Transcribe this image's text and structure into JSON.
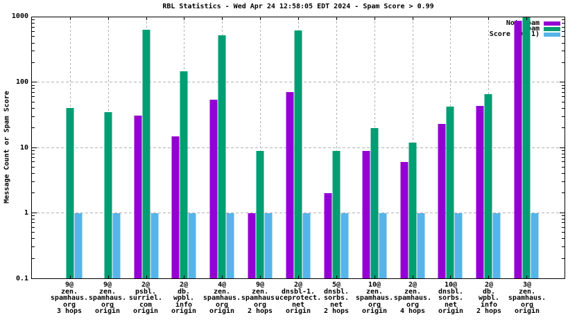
{
  "title": "RBL Statistics - Wed Apr 24 12:58:05 EDT 2024 - Spam Score > 0.99",
  "y_axis": {
    "label": "Message Count or Spam Score",
    "scale": "log",
    "ticks": [
      {
        "label": "1000",
        "value": 1000
      },
      {
        "label": "100",
        "value": 100
      },
      {
        "label": "10",
        "value": 10
      },
      {
        "label": "1",
        "value": 1
      },
      {
        "label": "0.1",
        "value": 0.1
      }
    ]
  },
  "legend": [
    {
      "label": "Not Spam",
      "color": "#9400d3"
    },
    {
      "label": "Spam",
      "color": "#009e73"
    },
    {
      "label": "Score (0..1)",
      "color": "#56b4e9"
    }
  ],
  "colors": {
    "not_spam": "#9400d3",
    "spam": "#009e73",
    "score": "#56b4e9",
    "grid": "#b0b0b0",
    "frame": "#000000",
    "background": "#ffffff"
  },
  "chart_data": {
    "type": "bar",
    "scale": "log",
    "ylim": [
      0.1,
      1000
    ],
    "grid": true,
    "legend_position": "top-right",
    "title": "RBL Statistics - Wed Apr 24 12:58:05 EDT 2024 - Spam Score > 0.99",
    "ylabel": "Message Count or Spam Score",
    "xlabel": "",
    "categories": [
      [
        "9@",
        "zen.",
        "spamhaus.",
        "org",
        "3 hops"
      ],
      [
        "9@",
        "zen.",
        "spamhaus.",
        "org",
        "origin"
      ],
      [
        "2@",
        "psbl.",
        "surriel.",
        "com",
        "origin"
      ],
      [
        "2@",
        "db.",
        "wpbl.",
        "info",
        "origin"
      ],
      [
        "4@",
        "zen.",
        "spamhaus.",
        "org",
        "origin"
      ],
      [
        "9@",
        "zen.",
        "spamhaus.",
        "org",
        "2 hops"
      ],
      [
        "2@",
        "dnsbl-1.",
        "uceprotect.",
        "net",
        "origin"
      ],
      [
        "5@",
        "dnsbl.",
        "sorbs.",
        "net",
        "2 hops"
      ],
      [
        "10@",
        "zen.",
        "spamhaus.",
        "org",
        "origin"
      ],
      [
        "2@",
        "zen.",
        "spamhaus.",
        "org",
        "4 hops"
      ],
      [
        "10@",
        "dnsbl.",
        "sorbs.",
        "net",
        "origin"
      ],
      [
        "2@",
        "db.",
        "wpbl.",
        "info",
        "2 hops"
      ],
      [
        "3@",
        "zen.",
        "spamhaus.",
        "org",
        "origin"
      ]
    ],
    "series": [
      {
        "name": "Not Spam",
        "color": "#9400d3",
        "values": [
          null,
          null,
          31,
          15,
          55,
          1,
          72,
          2,
          9,
          6,
          23,
          44,
          890
        ]
      },
      {
        "name": "Spam",
        "color": "#009e73",
        "values": [
          41,
          35,
          640,
          150,
          530,
          9,
          630,
          9,
          20,
          12,
          43,
          67,
          1000
        ]
      },
      {
        "name": "Score (0..1)",
        "color": "#56b4e9",
        "values": [
          1,
          1,
          1,
          1,
          1,
          1,
          1,
          1,
          1,
          1,
          1,
          1,
          1
        ]
      }
    ]
  }
}
